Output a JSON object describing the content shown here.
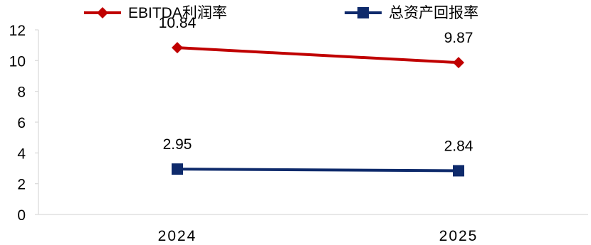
{
  "chart_data": {
    "type": "line",
    "categories": [
      "2024",
      "2025"
    ],
    "series": [
      {
        "name": "EBITDA利润率",
        "values": [
          10.84,
          9.87
        ],
        "labels": [
          "10.84",
          "9.87"
        ],
        "color": "#c00000",
        "marker": "diamond"
      },
      {
        "name": "总资产回报率",
        "values": [
          2.95,
          2.84
        ],
        "labels": [
          "2.95",
          "2.84"
        ],
        "color": "#0e2a6b",
        "marker": "square"
      }
    ],
    "ylim": [
      0,
      12
    ],
    "yticks": [
      "0",
      "2",
      "4",
      "6",
      "8",
      "10",
      "12"
    ],
    "grid": false,
    "legend": "top",
    "axis_color": "#d9d9d9"
  }
}
